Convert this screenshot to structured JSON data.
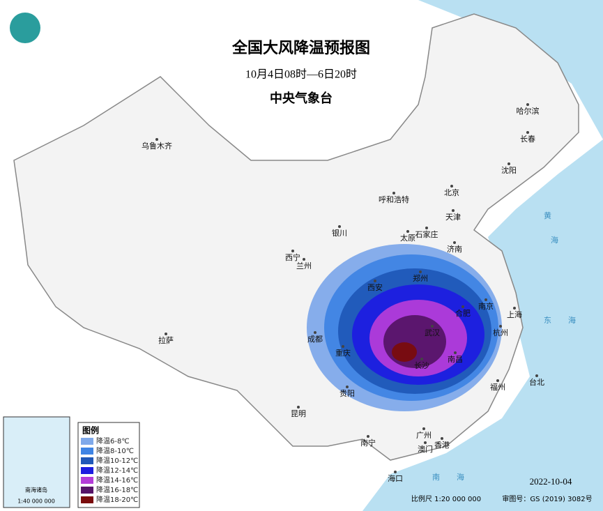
{
  "header": {
    "title": "全国大风降温预报图",
    "period": "10月4日08时—6日20时",
    "issuer": "中央气象台"
  },
  "cities": [
    "乌鲁木齐",
    "哈尔滨",
    "长春",
    "沈阳",
    "北京",
    "天津",
    "呼和浩特",
    "石家庄",
    "太原",
    "济南",
    "银川",
    "兰州",
    "西宁",
    "西安",
    "郑州",
    "合肥",
    "南京",
    "上海",
    "杭州",
    "武汉",
    "长沙",
    "南昌",
    "成都",
    "重庆",
    "贵阳",
    "昆明",
    "拉萨",
    "福州",
    "台北",
    "南宁",
    "广州",
    "香港",
    "澳门",
    "海口"
  ],
  "seas": [
    "黄",
    "海",
    "东",
    "海",
    "南",
    "海"
  ],
  "legend": {
    "title": "图例",
    "items": [
      {
        "label": "降温6-8℃",
        "color": "#7fa9ea"
      },
      {
        "label": "降温8-10℃",
        "color": "#3f84e4"
      },
      {
        "label": "降温10-12℃",
        "color": "#2058b8"
      },
      {
        "label": "降温12-14℃",
        "color": "#1d1de0"
      },
      {
        "label": "降温14-16℃",
        "color": "#b33cd8"
      },
      {
        "label": "降温16-18℃",
        "color": "#561468"
      },
      {
        "label": "降温18-20℃",
        "color": "#7a0c0c"
      }
    ]
  },
  "inset": {
    "title": "南海诸岛",
    "scale": "1:40 000 000"
  },
  "footer": {
    "date": "2022-10-04",
    "scale": "比例尺 1:20 000 000",
    "approval": "审图号：GS (2019) 3082号"
  }
}
